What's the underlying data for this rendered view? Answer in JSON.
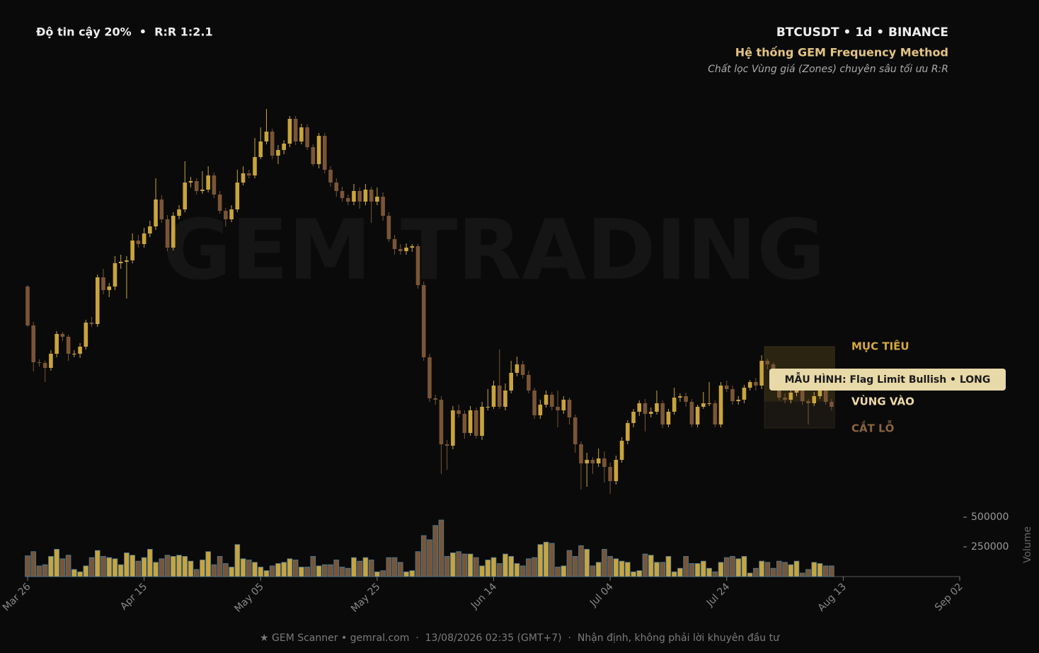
{
  "header": {
    "left": "Độ tin cậy 20%  •  R:R 1:2.1",
    "symbol": "BTCUSDT • 1d • BINANCE",
    "system": "Hệ thống GEM Frequency Method",
    "subtitle": "Chất lọc Vùng giá (Zones) chuyên sâu tối ưu R:R"
  },
  "footer": "★ GEM Scanner • gemral.com  ·  13/08/2026 02:35 (GMT+7)  ·  Nhận định, không phải lời khuyên đầu tư",
  "chart_data": {
    "type": "candlestick",
    "watermark": "GEM TRADING",
    "bull_color": "#c9a43c",
    "bear_color": "#7a5535",
    "volume_edge": "#4a7fa0",
    "x": [
      0,
      1,
      2,
      3,
      4,
      5,
      6,
      7,
      8,
      9,
      10,
      11,
      12,
      13,
      14,
      15,
      16,
      17,
      18,
      19,
      20,
      21,
      22,
      23,
      24,
      25,
      26,
      27,
      28,
      29,
      30,
      31,
      32,
      33,
      34,
      35,
      36,
      37,
      38,
      39,
      40,
      41,
      42,
      43,
      44,
      45,
      46,
      47,
      48,
      49,
      50,
      51,
      52,
      53,
      54,
      55,
      56,
      57,
      58,
      59,
      60,
      61,
      62,
      63,
      64,
      65,
      66,
      67,
      68,
      69,
      70,
      71,
      72,
      73,
      74,
      75,
      76,
      77,
      78,
      79,
      80,
      81,
      82,
      83,
      84,
      85,
      86,
      87,
      88,
      89,
      90,
      91,
      92,
      93,
      94,
      95,
      96,
      97,
      98,
      99,
      100,
      101,
      102,
      103,
      104,
      105,
      106,
      107,
      108,
      109,
      110,
      111,
      112,
      113,
      114,
      115,
      116,
      117,
      118,
      119,
      120,
      121,
      122,
      123,
      124,
      125,
      126,
      127,
      128,
      129,
      130,
      131,
      132,
      133,
      134,
      135,
      136,
      137,
      138
    ],
    "ohlc": [
      [
        395,
        397,
        338,
        340
      ],
      [
        340,
        345,
        275,
        288
      ],
      [
        288,
        292,
        282,
        287
      ],
      [
        287,
        290,
        260,
        280
      ],
      [
        280,
        305,
        276,
        300
      ],
      [
        300,
        332,
        295,
        328
      ],
      [
        328,
        331,
        318,
        324
      ],
      [
        324,
        327,
        290,
        300
      ],
      [
        300,
        305,
        295,
        300
      ],
      [
        300,
        315,
        294,
        310
      ],
      [
        310,
        348,
        306,
        344
      ],
      [
        344,
        352,
        338,
        342
      ],
      [
        342,
        412,
        338,
        408
      ],
      [
        408,
        420,
        384,
        390
      ],
      [
        390,
        400,
        380,
        395
      ],
      [
        395,
        438,
        390,
        428
      ],
      [
        428,
        440,
        420,
        430
      ],
      [
        430,
        438,
        378,
        432
      ],
      [
        432,
        470,
        428,
        460
      ],
      [
        460,
        468,
        450,
        455
      ],
      [
        455,
        478,
        450,
        470
      ],
      [
        470,
        488,
        465,
        480
      ],
      [
        480,
        548,
        475,
        518
      ],
      [
        518,
        524,
        485,
        490
      ],
      [
        490,
        496,
        445,
        450
      ],
      [
        450,
        500,
        446,
        495
      ],
      [
        495,
        510,
        490,
        504
      ],
      [
        504,
        572,
        500,
        542
      ],
      [
        542,
        550,
        535,
        544
      ],
      [
        544,
        548,
        525,
        530
      ],
      [
        530,
        558,
        526,
        532
      ],
      [
        532,
        565,
        528,
        552
      ],
      [
        552,
        556,
        520,
        525
      ],
      [
        525,
        530,
        498,
        502
      ],
      [
        502,
        506,
        480,
        490
      ],
      [
        490,
        510,
        486,
        504
      ],
      [
        504,
        560,
        500,
        542
      ],
      [
        542,
        565,
        538,
        555
      ],
      [
        555,
        560,
        548,
        552
      ],
      [
        552,
        605,
        548,
        578
      ],
      [
        578,
        620,
        575,
        600
      ],
      [
        600,
        646,
        596,
        614
      ],
      [
        614,
        618,
        575,
        580
      ],
      [
        580,
        595,
        568,
        588
      ],
      [
        588,
        602,
        582,
        597
      ],
      [
        597,
        636,
        592,
        632
      ],
      [
        632,
        636,
        595,
        600
      ],
      [
        600,
        625,
        596,
        620
      ],
      [
        620,
        624,
        588,
        592
      ],
      [
        592,
        596,
        565,
        568
      ],
      [
        568,
        612,
        562,
        608
      ],
      [
        608,
        612,
        555,
        560
      ],
      [
        560,
        565,
        536,
        542
      ],
      [
        542,
        548,
        522,
        530
      ],
      [
        530,
        536,
        515,
        520
      ],
      [
        520,
        525,
        510,
        515
      ],
      [
        515,
        540,
        510,
        530
      ],
      [
        530,
        535,
        505,
        515
      ],
      [
        515,
        540,
        510,
        532
      ],
      [
        532,
        536,
        485,
        515
      ],
      [
        515,
        535,
        510,
        522
      ],
      [
        522,
        528,
        488,
        495
      ],
      [
        495,
        500,
        458,
        462
      ],
      [
        462,
        468,
        440,
        448
      ],
      [
        448,
        455,
        440,
        445
      ],
      [
        445,
        456,
        440,
        450
      ],
      [
        450,
        455,
        444,
        452
      ],
      [
        452,
        455,
        392,
        397
      ],
      [
        397,
        402,
        290,
        295
      ],
      [
        295,
        300,
        232,
        237
      ],
      [
        237,
        242,
        228,
        235
      ],
      [
        235,
        240,
        130,
        172
      ],
      [
        172,
        178,
        136,
        170
      ],
      [
        170,
        226,
        165,
        220
      ],
      [
        220,
        228,
        210,
        215
      ],
      [
        215,
        220,
        180,
        188
      ],
      [
        188,
        226,
        184,
        220
      ],
      [
        220,
        224,
        180,
        184
      ],
      [
        184,
        232,
        178,
        225
      ],
      [
        225,
        250,
        220,
        225
      ],
      [
        225,
        262,
        222,
        255
      ],
      [
        255,
        306,
        222,
        225
      ],
      [
        225,
        258,
        220,
        248
      ],
      [
        248,
        290,
        244,
        273
      ],
      [
        273,
        296,
        268,
        285
      ],
      [
        285,
        290,
        265,
        270
      ],
      [
        270,
        276,
        244,
        248
      ],
      [
        248,
        252,
        208,
        213
      ],
      [
        213,
        235,
        208,
        228
      ],
      [
        228,
        248,
        224,
        242
      ],
      [
        242,
        246,
        220,
        225
      ],
      [
        225,
        248,
        196,
        220
      ],
      [
        220,
        240,
        215,
        235
      ],
      [
        235,
        238,
        200,
        210
      ],
      [
        210,
        214,
        160,
        172
      ],
      [
        172,
        176,
        108,
        145
      ],
      [
        145,
        160,
        112,
        150
      ],
      [
        150,
        154,
        130,
        145
      ],
      [
        145,
        166,
        140,
        152
      ],
      [
        152,
        162,
        118,
        140
      ],
      [
        140,
        146,
        102,
        120
      ],
      [
        120,
        156,
        115,
        150
      ],
      [
        150,
        182,
        146,
        177
      ],
      [
        177,
        206,
        172,
        202
      ],
      [
        202,
        222,
        196,
        218
      ],
      [
        218,
        234,
        212,
        230
      ],
      [
        230,
        236,
        190,
        215
      ],
      [
        215,
        224,
        210,
        218
      ],
      [
        218,
        248,
        214,
        230
      ],
      [
        230,
        234,
        195,
        200
      ],
      [
        200,
        222,
        196,
        218
      ],
      [
        218,
        252,
        214,
        238
      ],
      [
        238,
        244,
        232,
        240
      ],
      [
        240,
        245,
        225,
        232
      ],
      [
        232,
        236,
        196,
        200
      ],
      [
        200,
        228,
        196,
        225
      ],
      [
        225,
        246,
        222,
        230
      ],
      [
        230,
        260,
        226,
        230
      ],
      [
        230,
        234,
        196,
        200
      ],
      [
        200,
        260,
        196,
        255
      ],
      [
        255,
        262,
        246,
        250
      ],
      [
        250,
        255,
        228,
        233
      ],
      [
        233,
        240,
        228,
        235
      ],
      [
        235,
        256,
        230,
        252
      ],
      [
        252,
        263,
        248,
        260
      ],
      [
        260,
        266,
        248,
        255
      ],
      [
        255,
        298,
        250,
        290
      ],
      [
        290,
        293,
        278,
        285
      ],
      [
        285,
        288,
        255,
        260
      ],
      [
        260,
        265,
        234,
        238
      ],
      [
        238,
        244,
        230,
        235
      ],
      [
        235,
        248,
        230,
        245
      ],
      [
        245,
        270,
        240,
        265
      ],
      [
        265,
        270,
        228,
        233
      ],
      [
        233,
        236,
        200,
        230
      ],
      [
        230,
        246,
        226,
        240
      ],
      [
        240,
        252,
        236,
        248
      ],
      [
        248,
        252,
        228,
        232
      ],
      [
        232,
        236,
        220,
        225
      ]
    ],
    "volume": [
      175000,
      210000,
      90000,
      100000,
      170000,
      230000,
      150000,
      180000,
      60000,
      40000,
      90000,
      160000,
      220000,
      170000,
      160000,
      150000,
      100000,
      200000,
      180000,
      130000,
      160000,
      230000,
      120000,
      150000,
      180000,
      170000,
      180000,
      170000,
      130000,
      60000,
      140000,
      210000,
      100000,
      170000,
      110000,
      80000,
      270000,
      150000,
      140000,
      120000,
      80000,
      50000,
      90000,
      110000,
      120000,
      150000,
      140000,
      80000,
      80000,
      170000,
      90000,
      100000,
      100000,
      140000,
      80000,
      70000,
      160000,
      130000,
      160000,
      140000,
      40000,
      50000,
      160000,
      160000,
      120000,
      40000,
      50000,
      210000,
      345000,
      310000,
      430000,
      476000,
      170000,
      200000,
      210000,
      190000,
      190000,
      160000,
      90000,
      140000,
      160000,
      110000,
      190000,
      170000,
      110000,
      90000,
      150000,
      160000,
      270000,
      290000,
      280000,
      80000,
      90000,
      220000,
      170000,
      260000,
      230000,
      90000,
      120000,
      230000,
      170000,
      150000,
      130000,
      120000,
      40000,
      50000,
      190000,
      180000,
      120000,
      120000,
      170000,
      40000,
      70000,
      170000,
      110000,
      110000,
      130000,
      70000,
      40000,
      120000,
      160000,
      170000,
      150000,
      170000,
      30000,
      70000,
      130000,
      120000,
      70000,
      130000,
      120000,
      100000,
      130000,
      30000,
      60000,
      120000,
      110000,
      90000,
      90000
    ],
    "xlim": [
      0,
      160
    ],
    "xticks": [
      {
        "value": 0,
        "label": "Mar 26"
      },
      {
        "value": 20,
        "label": "Apr 15"
      },
      {
        "value": 40,
        "label": "May 05"
      },
      {
        "value": 60,
        "label": "May 25"
      },
      {
        "value": 80,
        "label": "Jun 14"
      },
      {
        "value": 100,
        "label": "Jul 04"
      },
      {
        "value": 120,
        "label": "Jul 24"
      },
      {
        "value": 140,
        "label": "Aug 13"
      },
      {
        "value": 160,
        "label": "Sep 02"
      }
    ],
    "ylim": [
      100,
      700
    ],
    "y2lim": [
      0,
      500000
    ],
    "y2ticks": [
      250000,
      500000
    ],
    "y2label": "Volume",
    "zones": {
      "xrange": [
        127,
        138
      ],
      "target": {
        "label": "MỤC TIÊU",
        "value": 310
      },
      "entry": {
        "label": "VÙNG VÀO",
        "value": 233
      },
      "stop": {
        "label": "CẮT LỖ",
        "value": 195
      }
    },
    "pattern": "MẪU HÌNH: Flag Limit Bullish • LONG"
  }
}
